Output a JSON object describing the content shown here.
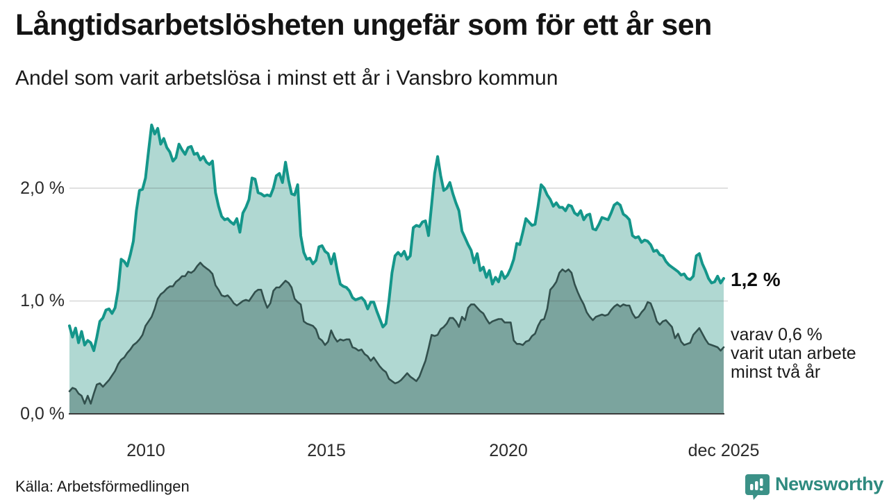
{
  "header": {
    "title": "Långtidsarbetslösheten ungefär som för ett år sen",
    "subtitle": "Andel som varit arbetslösa i minst ett år i Vansbro kommun"
  },
  "chart_data": {
    "type": "area",
    "title": "Långtidsarbetslösheten ungefär som för ett år sen",
    "subtitle": "Andel som varit arbetslösa i minst ett år i Vansbro kommun",
    "unit": "%",
    "x_start": "2008-01",
    "x_end": "2025-12",
    "x_tick_labels": [
      "2010",
      "2015",
      "2020",
      "dec 2025"
    ],
    "y_tick_labels": [
      "2,0 %",
      "1,0 %",
      "0,0 %"
    ],
    "y_tick_values": [
      2.0,
      1.0,
      0.0
    ],
    "ylim": [
      0,
      2.75
    ],
    "grid": "horizontal",
    "legend_position": "none",
    "colors": {
      "series1_line": "#14968a",
      "series1_fill": "#b0d8d2",
      "series2_line": "#32504d",
      "series2_fill": "#7ba49e",
      "gridline": "rgba(60,60,60,0.16)",
      "baseline": "#3c3c3c",
      "brand_teal": "#2e8a7f"
    },
    "series": [
      {
        "name": "arbetslösa minst ett år",
        "color": "#14968a",
        "fill": "#b0d8d2",
        "last_value": 1.2,
        "values": [
          0.78,
          0.68,
          0.76,
          0.63,
          0.73,
          0.61,
          0.65,
          0.63,
          0.56,
          0.68,
          0.82,
          0.85,
          0.92,
          0.93,
          0.89,
          0.94,
          1.1,
          1.37,
          1.35,
          1.31,
          1.41,
          1.53,
          1.8,
          1.98,
          1.99,
          2.09,
          2.33,
          2.56,
          2.48,
          2.53,
          2.39,
          2.44,
          2.36,
          2.32,
          2.24,
          2.27,
          2.39,
          2.34,
          2.3,
          2.36,
          2.37,
          2.3,
          2.31,
          2.25,
          2.28,
          2.23,
          2.21,
          2.24,
          1.96,
          1.84,
          1.75,
          1.72,
          1.73,
          1.7,
          1.68,
          1.73,
          1.61,
          1.78,
          1.83,
          1.9,
          2.09,
          2.08,
          1.96,
          1.95,
          1.93,
          1.94,
          1.93,
          2.0,
          2.11,
          2.13,
          2.05,
          2.23,
          2.07,
          1.95,
          1.94,
          2.03,
          1.58,
          1.43,
          1.37,
          1.38,
          1.33,
          1.36,
          1.48,
          1.49,
          1.44,
          1.42,
          1.33,
          1.42,
          1.27,
          1.15,
          1.13,
          1.12,
          1.09,
          1.03,
          1.01,
          1.02,
          1.03,
          1.0,
          0.93,
          0.99,
          0.99,
          0.91,
          0.84,
          0.77,
          0.8,
          1.0,
          1.25,
          1.4,
          1.43,
          1.4,
          1.44,
          1.37,
          1.4,
          1.65,
          1.67,
          1.66,
          1.7,
          1.71,
          1.58,
          1.85,
          2.13,
          2.28,
          2.11,
          1.98,
          2.0,
          2.05,
          1.95,
          1.87,
          1.8,
          1.62,
          1.56,
          1.5,
          1.45,
          1.34,
          1.42,
          1.27,
          1.3,
          1.21,
          1.27,
          1.15,
          1.21,
          1.17,
          1.26,
          1.2,
          1.23,
          1.29,
          1.37,
          1.51,
          1.5,
          1.61,
          1.73,
          1.7,
          1.67,
          1.68,
          1.84,
          2.03,
          2.0,
          1.94,
          1.9,
          1.84,
          1.87,
          1.83,
          1.83,
          1.8,
          1.85,
          1.84,
          1.78,
          1.76,
          1.8,
          1.72,
          1.76,
          1.77,
          1.64,
          1.63,
          1.68,
          1.74,
          1.73,
          1.72,
          1.78,
          1.85,
          1.87,
          1.85,
          1.77,
          1.75,
          1.72,
          1.58,
          1.56,
          1.57,
          1.52,
          1.54,
          1.53,
          1.5,
          1.44,
          1.45,
          1.41,
          1.4,
          1.35,
          1.32,
          1.3,
          1.28,
          1.26,
          1.23,
          1.24,
          1.2,
          1.19,
          1.22,
          1.4,
          1.42,
          1.33,
          1.27,
          1.2,
          1.16,
          1.17,
          1.22,
          1.16,
          1.2
        ]
      },
      {
        "name": "varav arbetslösa minst två år",
        "color": "#32504d",
        "fill": "#7ba49e",
        "last_value": 0.6,
        "values": [
          0.2,
          0.23,
          0.22,
          0.18,
          0.16,
          0.09,
          0.16,
          0.09,
          0.18,
          0.26,
          0.27,
          0.24,
          0.27,
          0.3,
          0.34,
          0.38,
          0.44,
          0.48,
          0.5,
          0.54,
          0.57,
          0.61,
          0.63,
          0.66,
          0.7,
          0.78,
          0.82,
          0.86,
          0.93,
          1.02,
          1.06,
          1.08,
          1.11,
          1.13,
          1.13,
          1.17,
          1.19,
          1.22,
          1.22,
          1.26,
          1.25,
          1.27,
          1.31,
          1.34,
          1.31,
          1.29,
          1.27,
          1.24,
          1.14,
          1.1,
          1.05,
          1.04,
          1.05,
          1.02,
          0.98,
          0.96,
          0.98,
          1.0,
          1.01,
          1.0,
          1.04,
          1.08,
          1.1,
          1.1,
          1.01,
          0.94,
          0.98,
          1.09,
          1.12,
          1.12,
          1.15,
          1.18,
          1.16,
          1.12,
          1.02,
          0.99,
          0.97,
          0.82,
          0.8,
          0.79,
          0.78,
          0.75,
          0.67,
          0.65,
          0.61,
          0.64,
          0.74,
          0.68,
          0.64,
          0.66,
          0.65,
          0.66,
          0.66,
          0.59,
          0.58,
          0.56,
          0.57,
          0.53,
          0.51,
          0.47,
          0.5,
          0.46,
          0.42,
          0.39,
          0.37,
          0.31,
          0.29,
          0.27,
          0.28,
          0.3,
          0.33,
          0.36,
          0.33,
          0.31,
          0.29,
          0.33,
          0.4,
          0.47,
          0.58,
          0.7,
          0.69,
          0.7,
          0.75,
          0.77,
          0.8,
          0.85,
          0.85,
          0.82,
          0.77,
          0.86,
          0.83,
          0.94,
          0.97,
          0.97,
          0.94,
          0.91,
          0.89,
          0.84,
          0.8,
          0.82,
          0.83,
          0.84,
          0.84,
          0.81,
          0.81,
          0.81,
          0.65,
          0.62,
          0.62,
          0.61,
          0.64,
          0.65,
          0.69,
          0.71,
          0.78,
          0.83,
          0.84,
          0.93,
          1.1,
          1.13,
          1.17,
          1.25,
          1.28,
          1.26,
          1.28,
          1.25,
          1.15,
          1.08,
          1.02,
          0.97,
          0.9,
          0.86,
          0.83,
          0.86,
          0.87,
          0.88,
          0.87,
          0.88,
          0.92,
          0.95,
          0.97,
          0.95,
          0.97,
          0.96,
          0.96,
          0.89,
          0.85,
          0.86,
          0.9,
          0.93,
          0.99,
          0.98,
          0.91,
          0.82,
          0.79,
          0.82,
          0.83,
          0.8,
          0.77,
          0.67,
          0.71,
          0.64,
          0.61,
          0.62,
          0.63,
          0.7,
          0.73,
          0.76,
          0.71,
          0.66,
          0.62,
          0.61,
          0.6,
          0.59,
          0.56,
          0.59
        ]
      }
    ],
    "annotations": {
      "last_value_label": "1,2 %",
      "secondary_lines": [
        "varav 0,6 %",
        "varit utan arbete",
        "minst två år"
      ]
    }
  },
  "footer": {
    "source": "Källa: Arbetsförmedlingen",
    "brand": "Newsworthy"
  }
}
